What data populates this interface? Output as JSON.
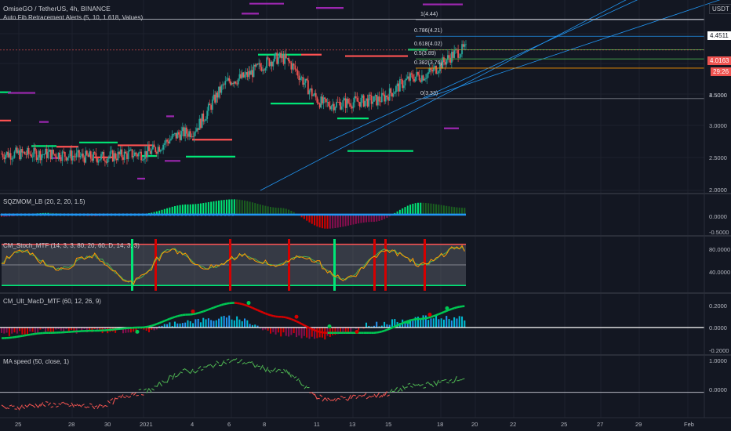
{
  "header": {
    "symbol_line": "OmiseGO / TetherUS, 4h, BINANCE",
    "indicator_line": "Auto Fib Retracement Alerts (5, 10, 1.618, Values)",
    "currency_button": "USDT"
  },
  "price_axis": {
    "ticks": [
      "4.5000",
      "3.5000",
      "3.0000",
      "2.5000",
      "2.0000"
    ],
    "price_badges": [
      {
        "text": "4.4511",
        "bg": "#ffffff",
        "fg": "#131722"
      },
      {
        "text": "4.0163",
        "bg": "#ef5350",
        "fg": "#ffffff"
      },
      {
        "text": "29:26",
        "bg": "#ef5350",
        "fg": "#ffffff"
      }
    ]
  },
  "fib_labels": [
    "1(4.44)",
    "0.786(4.21)",
    "0.618(4.02)",
    "0.5(3.89)",
    "0.382(3.76)",
    "0(3.33)"
  ],
  "panes": {
    "sqzmom": {
      "title": "SQZMOM_LB (20, 2, 20, 1.5)",
      "ticks": [
        "0.0000",
        "-0.5000"
      ]
    },
    "stoch": {
      "title": "CM_Stoch_MTF (14, 3, 3, 80, 20, 60, D, 14, 3, 3)",
      "ticks": [
        "80.0000",
        "40.0000"
      ]
    },
    "macd": {
      "title": "CM_Ult_MacD_MTF (60, 12, 26, 9)",
      "ticks": [
        "0.2000",
        "0.0000",
        "-0.2000"
      ]
    },
    "maspeed": {
      "title": "MA speed (50, close, 1)",
      "ticks": [
        "1.0000",
        "0.0000"
      ]
    }
  },
  "time_axis": [
    "25",
    "28",
    "30",
    "2021",
    "4",
    "6",
    "8",
    "11",
    "13",
    "15",
    "18",
    "20",
    "22",
    "25",
    "27",
    "29",
    "Feb"
  ],
  "colors": {
    "background": "#131722",
    "up": "#26a69a",
    "down": "#ef5350",
    "green_level": "#00e676",
    "red_level": "#ff5252",
    "purple_level": "#9c27b0",
    "channel": "#2196f3",
    "sqz_dots": "#2196f3",
    "stoch_fill": "#787b86",
    "macd_up": "#00c853",
    "macd_down": "#d50000"
  },
  "chart_data": [
    {
      "type": "candlestick",
      "title": "OmiseGO / TetherUS, 4h, BINANCE",
      "ylabel": "USDT",
      "ylim": [
        2.0,
        4.7
      ],
      "x": [
        "25",
        "28",
        "30",
        "2021",
        "4",
        "6",
        "8",
        "11",
        "13",
        "15",
        "18"
      ],
      "close": [
        2.55,
        2.55,
        2.5,
        2.55,
        2.85,
        3.6,
        3.9,
        3.25,
        3.3,
        3.65,
        4.02
      ],
      "fib_levels": [
        {
          "ratio": "1",
          "price": 4.44
        },
        {
          "ratio": "0.786",
          "price": 4.21
        },
        {
          "ratio": "0.618",
          "price": 4.02
        },
        {
          "ratio": "0.5",
          "price": 3.89
        },
        {
          "ratio": "0.382",
          "price": 3.76
        },
        {
          "ratio": "0",
          "price": 3.33
        }
      ],
      "last_price": 4.0163,
      "high_marker": 4.4511
    },
    {
      "type": "bar",
      "title": "SQZMOM_LB (20, 2, 20, 1.5)",
      "x": [
        "25",
        "28",
        "30",
        "2021",
        "4",
        "6",
        "8",
        "11",
        "13",
        "15",
        "18"
      ],
      "values": [
        -0.05,
        0.05,
        -0.03,
        0.02,
        0.3,
        0.45,
        0.2,
        -0.4,
        -0.2,
        0.35,
        0.2
      ],
      "ylim": [
        -0.6,
        0.55
      ]
    },
    {
      "type": "line",
      "title": "CM_Stoch_MTF (14, 3, 3, 80, 20, 60, D, 14, 3, 3)",
      "x": [
        "25",
        "28",
        "30",
        "2021",
        "4",
        "6",
        "8",
        "11",
        "13",
        "15",
        "18"
      ],
      "series": [
        {
          "values": [
            55,
            72,
            45,
            30,
            82,
            45,
            80,
            25,
            60,
            80,
            70
          ]
        },
        {
          "values": [
            50,
            68,
            50,
            35,
            78,
            50,
            76,
            30,
            55,
            76,
            72
          ]
        }
      ],
      "bands": [
        80,
        20
      ],
      "ylim": [
        10,
        90
      ]
    },
    {
      "type": "line",
      "title": "CM_Ult_MacD_MTF (60, 12, 26, 9)",
      "x": [
        "25",
        "28",
        "30",
        "2021",
        "4",
        "6",
        "8",
        "11",
        "13",
        "15",
        "18"
      ],
      "series": [
        {
          "values": [
            -0.1,
            -0.05,
            -0.03,
            0.0,
            0.12,
            0.23,
            0.1,
            -0.05,
            -0.05,
            0.08,
            0.2
          ]
        },
        {
          "values": [
            -0.08,
            -0.04,
            -0.02,
            0.01,
            0.1,
            0.2,
            0.12,
            -0.02,
            -0.06,
            0.05,
            0.17
          ]
        }
      ],
      "ylim": [
        -0.25,
        0.3
      ]
    },
    {
      "type": "line",
      "title": "MA speed (50, close, 1)",
      "x": [
        "25",
        "28",
        "30",
        "2021",
        "4",
        "6",
        "8",
        "11",
        "13",
        "15",
        "18"
      ],
      "series": [
        {
          "values": [
            -0.45,
            -0.35,
            -0.4,
            0.0,
            0.6,
            0.9,
            0.6,
            -0.2,
            -0.1,
            0.2,
            0.4
          ]
        }
      ],
      "ylim": [
        -0.7,
        1.0
      ]
    }
  ]
}
